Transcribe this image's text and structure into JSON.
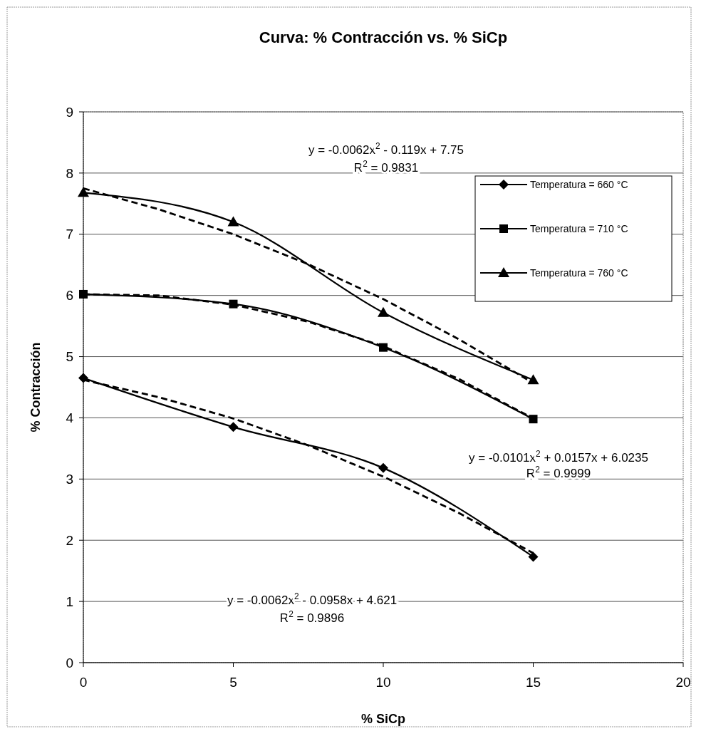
{
  "chart_data": {
    "type": "line",
    "title": "Curva: % Contracción vs. % SiCp",
    "xlabel": "% SiCp",
    "ylabel": "% Contracción",
    "x": [
      0,
      5,
      10,
      15
    ],
    "xlim": [
      0,
      20
    ],
    "xticks": [
      0,
      5,
      10,
      15,
      20
    ],
    "ylim": [
      0,
      9
    ],
    "yticks": [
      0,
      1,
      2,
      3,
      4,
      5,
      6,
      7,
      8,
      9
    ],
    "grid": "y",
    "legend": "top right",
    "line_style": "solid",
    "series": [
      {
        "name": "Temperatura = 660 °C",
        "color": "#000000",
        "marker": "diamond",
        "values": [
          4.65,
          3.85,
          3.18,
          1.73
        ]
      },
      {
        "name": "Temperatura = 710 °C",
        "color": "#000000",
        "marker": "square",
        "values": [
          6.02,
          5.86,
          5.15,
          3.98
        ]
      },
      {
        "name": "Temperatura = 760 °C",
        "color": "#000000",
        "marker": "triangle",
        "values": [
          7.68,
          7.2,
          5.72,
          4.62
        ]
      },
      {
        "type": "line",
        "color": "#000000",
        "marker": "none",
        "line_style": "dashed",
        "x": [
          0,
          2.5,
          5,
          7.5,
          10,
          12.5,
          15
        ],
        "values": [
          4.62,
          4.34,
          3.99,
          3.55,
          3.04,
          2.45,
          1.79
        ]
      },
      {
        "type": "line",
        "color": "#000000",
        "marker": "none",
        "line_style": "dashed",
        "x": [
          0,
          2.5,
          5,
          7.5,
          10,
          12.5,
          15
        ],
        "values": [
          6.02,
          6.0,
          5.85,
          5.57,
          5.17,
          4.64,
          3.99
        ]
      },
      {
        "type": "line",
        "color": "#000000",
        "marker": "none",
        "line_style": "dashed",
        "x": [
          0,
          2.5,
          5,
          7.5,
          10,
          12.5,
          15
        ],
        "values": [
          7.75,
          7.41,
          7.0,
          6.51,
          5.94,
          5.29,
          4.57
        ]
      }
    ],
    "annotations": [
      "y = -0.0062x$^{2}$ - 0.119x + 7.75",
      "R$^{2}$ = 0.9831",
      "y = -0.0101x$^{2}$ + 0.0157x + 6.0235",
      "R$^{2}$ = 0.9999",
      "y = -0.0062x$^{2}$ - 0.0958x + 4.621",
      "R$^{2}$ = 0.9896"
    ]
  }
}
